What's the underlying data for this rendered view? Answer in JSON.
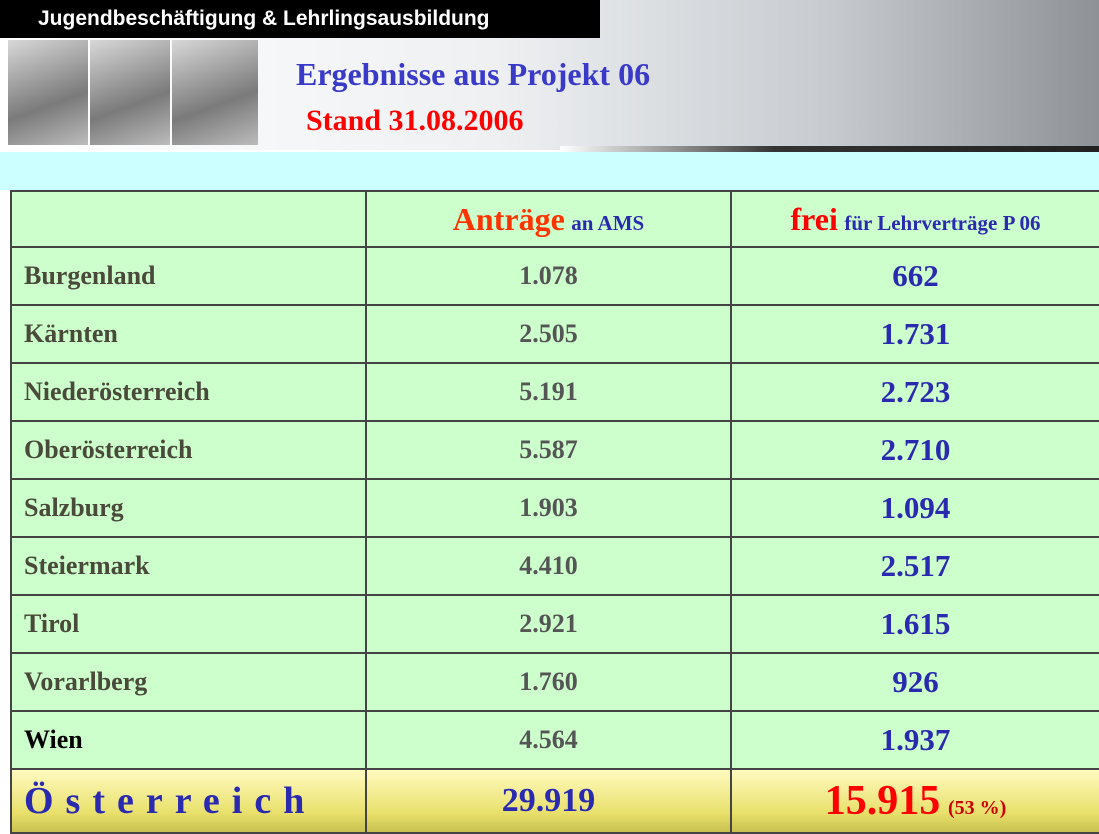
{
  "header": {
    "banner": "Jugendbeschäftigung & Lehrlingsausbildung",
    "title": "Ergebnisse aus Projekt 06",
    "subtitle": "Stand 31.08.2006"
  },
  "table": {
    "columns": [
      {
        "main": "Anträge",
        "rest": "an AMS"
      },
      {
        "main": "frei",
        "rest": "für Lehrverträge P 06"
      }
    ],
    "rows": [
      [
        "Burgenland",
        "1.078",
        "662"
      ],
      [
        "Kärnten",
        "2.505",
        "1.731"
      ],
      [
        "Niederösterreich",
        "5.191",
        "2.723"
      ],
      [
        "Oberösterreich",
        "5.587",
        "2.710"
      ],
      [
        "Salzburg",
        "1.903",
        "1.094"
      ],
      [
        "Steiermark",
        "4.410",
        "2.517"
      ],
      [
        "Tirol",
        "2.921",
        "1.615"
      ],
      [
        "Vorarlberg",
        "1.760",
        "926"
      ],
      [
        "Wien",
        "4.564",
        "1.937"
      ]
    ],
    "total": {
      "name": "Österreich",
      "antraege": "29.919",
      "frei": "15.915",
      "share": "(53 %)"
    }
  }
}
